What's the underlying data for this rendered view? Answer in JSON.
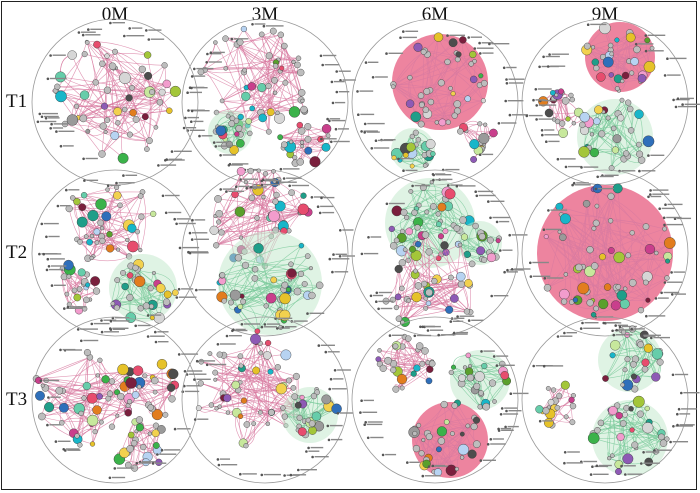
{
  "figure": {
    "columns": [
      "0M",
      "3M",
      "6M",
      "9M"
    ],
    "rows": [
      "T1",
      "T2",
      "T3"
    ]
  },
  "colors": {
    "positive_edge": "#d87aa0",
    "negative_edge": "#79c99a",
    "positive_module_fill": "#ea6f8e",
    "negative_module_fill": "#bfe8c9",
    "node_border": "#333333",
    "grey_node": "#bdbdbd"
  },
  "node_palette": [
    "#1f9e89",
    "#e6c229",
    "#c93f8c",
    "#5aa02c",
    "#2f6fba",
    "#e27d1e",
    "#8e5ab5",
    "#18b6c9",
    "#d6d6d6",
    "#7a1f3d",
    "#3bb24a",
    "#e74c6e",
    "#c7e89c",
    "#9a9a9a",
    "#b7d3f2",
    "#f29ccd",
    "#4d4d4d",
    "#a3c639",
    "#f2d14e",
    "#66cdaa"
  ]
}
